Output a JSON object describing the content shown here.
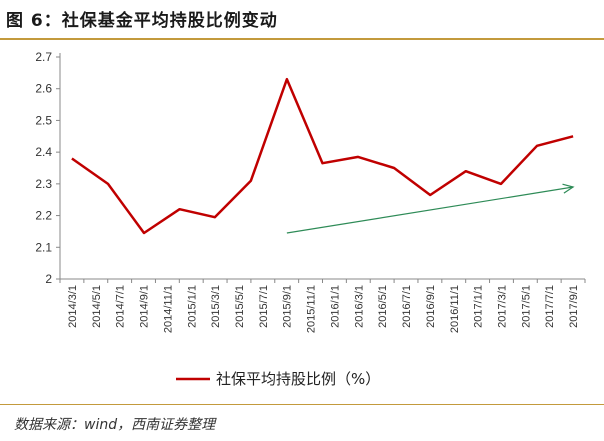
{
  "header": {
    "title": "图 6：社保基金平均持股比例变动"
  },
  "footer": {
    "source": "数据来源：wind，西南证券整理"
  },
  "colors": {
    "series": "#c00000",
    "trend_arrow": "#2e8b57",
    "rule": "#c39a3c",
    "axis": "#888888"
  },
  "chart_data": {
    "type": "line",
    "title": "",
    "xlabel": "",
    "ylabel": "",
    "ylim": [
      2,
      2.7
    ],
    "yticks": [
      "2.7",
      "2.6",
      "2.5",
      "2.4",
      "2.3",
      "2.2",
      "2.1",
      "2"
    ],
    "grid": false,
    "legend_position": "bottom",
    "categories": [
      "2014/3/1",
      "2014/5/1",
      "2014/7/1",
      "2014/9/1",
      "2014/11/1",
      "2015/1/1",
      "2015/3/1",
      "2015/5/1",
      "2015/7/1",
      "2015/9/1",
      "2015/11/1",
      "2016/1/1",
      "2016/3/1",
      "2016/5/1",
      "2016/7/1",
      "2016/9/1",
      "2016/11/1",
      "2017/1/1",
      "2017/3/1",
      "2017/5/1",
      "2017/7/1",
      "2017/9/1"
    ],
    "series": [
      {
        "name": "社保平均持股比例（%）",
        "x": [
          "2014/3/1",
          "2014/6/1",
          "2014/9/1",
          "2014/12/1",
          "2015/3/1",
          "2015/6/1",
          "2015/9/1",
          "2015/12/1",
          "2016/3/1",
          "2016/6/1",
          "2016/9/1",
          "2016/12/1",
          "2017/3/1",
          "2017/6/1",
          "2017/9/1"
        ],
        "values": [
          2.38,
          2.3,
          2.145,
          2.22,
          2.195,
          2.31,
          2.63,
          2.365,
          2.385,
          2.35,
          2.265,
          2.34,
          2.3,
          2.42,
          2.45
        ]
      }
    ],
    "annotations": [
      {
        "type": "arrow",
        "from": {
          "x": "2015/9/1",
          "y": 2.145
        },
        "to": {
          "x": "2017/9/1",
          "y": 2.29
        }
      }
    ]
  }
}
